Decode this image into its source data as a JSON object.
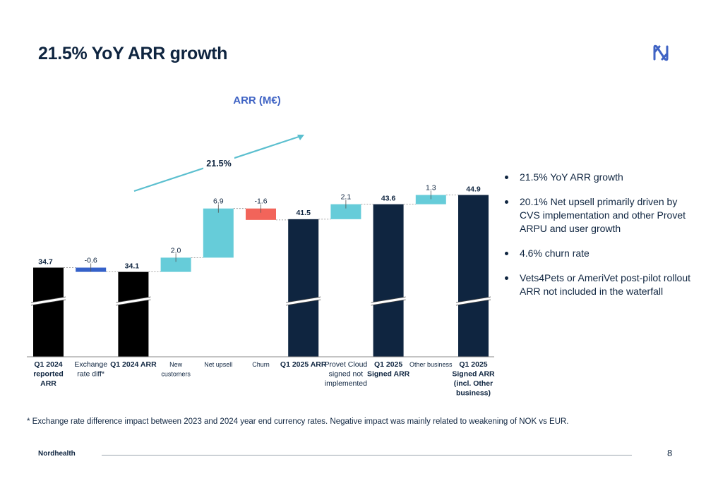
{
  "page": {
    "title": "21.5% YoY ARR growth",
    "logo_icon": "nordhealth-logo-icon",
    "footnote": "* Exchange rate difference impact between 2023 and 2024 year end currency rates. Negative impact was mainly related to weakening of NOK vs EUR.",
    "footer_brand": "Nordhealth",
    "page_number": "8"
  },
  "bullets": [
    "21.5% YoY ARR growth",
    "20.1% Net upsell primarily driven by CVS implementation and other Provet ARPU and user growth",
    "4.6% churn rate",
    "Vets4Pets or AmeriVet post-pilot rollout ARR not included in the waterfall"
  ],
  "colors": {
    "brand_navy": "#0f2540",
    "total_black": "#000000",
    "increase_teal": "#66ccd9",
    "decrease_red": "#f2645a",
    "fx_blue": "#3561c9",
    "growth_arrow": "#5bbfcf",
    "chart_title": "#3f63c4"
  },
  "chart_data": {
    "type": "bar",
    "subtype": "waterfall",
    "title": "ARR (M€)",
    "growth_annotation": "21.5%",
    "axis_break": true,
    "grid": false,
    "legend": "none",
    "steps": [
      {
        "label": "Q1 2024 reported ARR",
        "value": 34.7,
        "kind": "total",
        "label_text": "34.7",
        "color": "#000000",
        "bold_label": true
      },
      {
        "label": "Exchange rate diff*",
        "value": -0.6,
        "kind": "delta",
        "label_text": "-0.6",
        "color": "#3561c9",
        "bold_label": false
      },
      {
        "label": "Q1 2024 ARR",
        "value": 34.1,
        "kind": "total",
        "label_text": "34.1",
        "color": "#000000",
        "bold_label": true
      },
      {
        "label": "New customers",
        "value": 2.0,
        "kind": "delta",
        "label_text": "2.0",
        "color": "#66ccd9",
        "bold_label": false
      },
      {
        "label": "Net upsell",
        "value": 6.9,
        "kind": "delta",
        "label_text": "6.9",
        "color": "#66ccd9",
        "bold_label": false
      },
      {
        "label": "Churn",
        "value": -1.6,
        "kind": "delta",
        "label_text": "-1.6",
        "color": "#f2645a",
        "bold_label": false
      },
      {
        "label": "Q1 2025 ARR",
        "value": 41.5,
        "kind": "total",
        "label_text": "41.5",
        "color": "#0f2540",
        "bold_label": true
      },
      {
        "label": "Provet Cloud signed not implemented",
        "value": 2.1,
        "kind": "delta",
        "label_text": "2.1",
        "color": "#66ccd9",
        "bold_label": false
      },
      {
        "label": "Q1 2025 Signed ARR",
        "value": 43.6,
        "kind": "total",
        "label_text": "43.6",
        "color": "#0f2540",
        "bold_label": true
      },
      {
        "label": "Other business",
        "value": 1.3,
        "kind": "delta",
        "label_text": "1.3",
        "color": "#66ccd9",
        "bold_label": false
      },
      {
        "label": "Q1 2025 Signed ARR (incl. Other business)",
        "value": 44.9,
        "kind": "total",
        "label_text": "44.9",
        "color": "#0f2540",
        "bold_label": true
      }
    ],
    "category_lines": [
      [
        "Q1 2024",
        "reported",
        "ARR"
      ],
      [
        "Exchange",
        "rate diff*"
      ],
      [
        "Q1 2024 ARR"
      ],
      [
        "New",
        "customers"
      ],
      [
        "Net upsell"
      ],
      [
        "Churn"
      ],
      [
        "Q1 2025 ARR"
      ],
      [
        "Provet Cloud",
        "signed not",
        "implemented"
      ],
      [
        "Q1 2025",
        "Signed ARR"
      ],
      [
        "Other business"
      ],
      [
        "Q1 2025",
        "Signed ARR",
        "(incl. Other",
        "business)"
      ]
    ]
  }
}
